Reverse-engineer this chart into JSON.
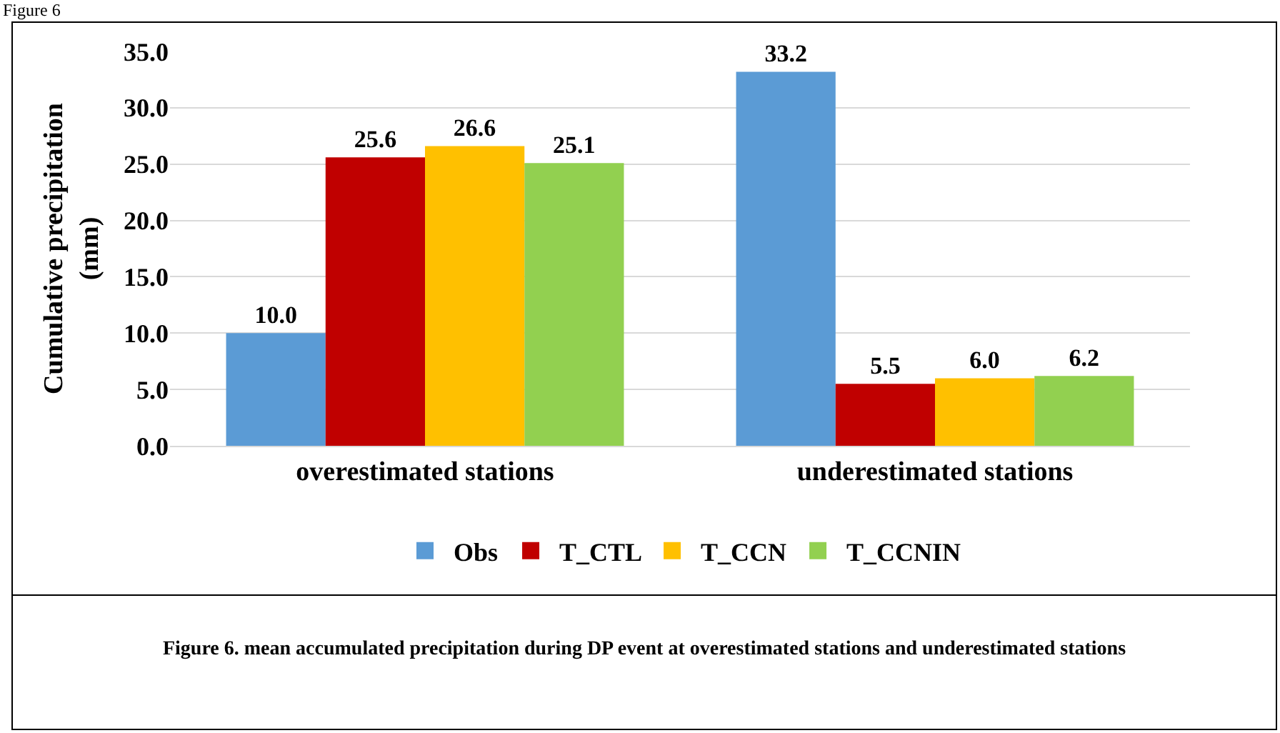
{
  "chart_data": {
    "type": "bar",
    "ylabel": "Cumulative precipitation (mm)",
    "categories": [
      "overestimated stations",
      "underestimated stations"
    ],
    "series": [
      {
        "name": "Obs",
        "color": "#5b9bd5",
        "values": [
          10.0,
          33.2
        ],
        "value_labels": [
          "10.0",
          "33.2"
        ]
      },
      {
        "name": "T_CTL",
        "color": "#c00000",
        "values": [
          25.6,
          5.5
        ],
        "value_labels": [
          "25.6",
          "5.5"
        ]
      },
      {
        "name": "T_CCN",
        "color": "#ffc000",
        "values": [
          26.6,
          6.0
        ],
        "value_labels": [
          "26.6",
          "6.0"
        ]
      },
      {
        "name": "T_CCNIN",
        "color": "#92d050",
        "values": [
          25.1,
          6.2
        ],
        "value_labels": [
          "25.1",
          "6.2"
        ]
      }
    ],
    "ylim": [
      0,
      35
    ],
    "yticks": [
      {
        "value": 0,
        "label": "0.0"
      },
      {
        "value": 5,
        "label": "5.0"
      },
      {
        "value": 10,
        "label": "10.0"
      },
      {
        "value": 15,
        "label": "15.0"
      },
      {
        "value": 20,
        "label": "20.0"
      },
      {
        "value": 25,
        "label": "25.0"
      },
      {
        "value": 30,
        "label": "30.0"
      },
      {
        "value": 35,
        "label": "35.0"
      }
    ],
    "grid": "y",
    "legend": "bottom",
    "annotations": [
      "Figure 6",
      "Figure 6. mean accumulated precipitation during DP event at overestimated stations and underestimated stations"
    ]
  }
}
